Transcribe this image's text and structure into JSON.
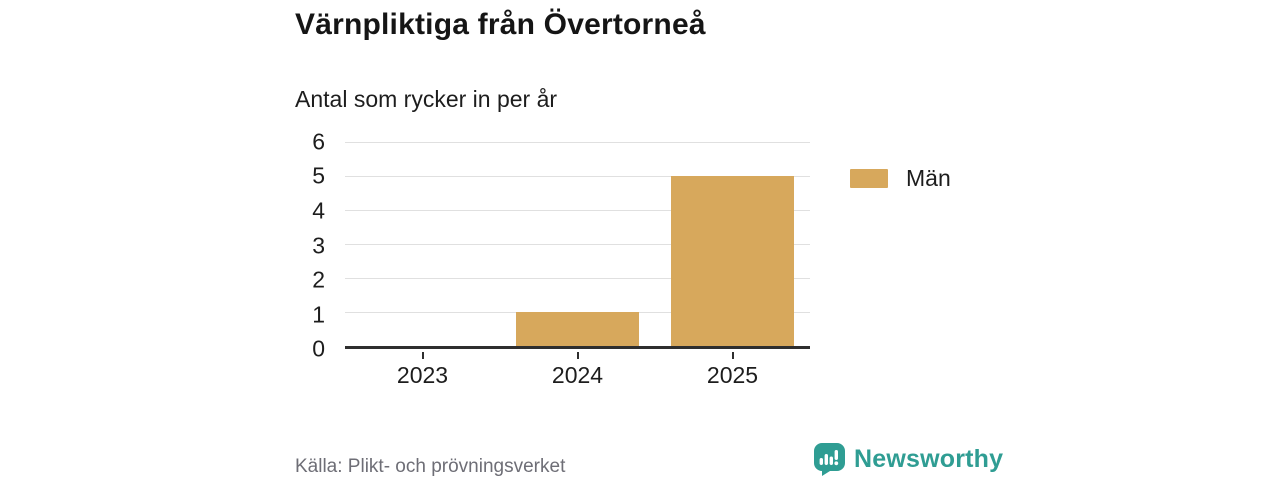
{
  "header": {
    "title": "Värnpliktiga från Övertorneå",
    "subtitle": "Antal som rycker in per år"
  },
  "chart_data": {
    "type": "bar",
    "title": "Värnpliktiga från Övertorneå",
    "subtitle": "Antal som rycker in per år",
    "categories": [
      "2023",
      "2024",
      "2025"
    ],
    "series": [
      {
        "name": "Män",
        "values": [
          0,
          1,
          5
        ],
        "color": "#d7a85c"
      }
    ],
    "xlabel": "",
    "ylabel": "",
    "ylim": [
      0,
      6
    ],
    "yticks": [
      0,
      1,
      2,
      3,
      4,
      5,
      6
    ],
    "grid": true,
    "legend_position": "right"
  },
  "legend": {
    "items": [
      {
        "label": "Män",
        "color": "#d7a85c"
      }
    ]
  },
  "footer": {
    "source": "Källa: Plikt- och prövningsverket",
    "brand": "Newsworthy"
  },
  "icons": {
    "brand_logo": "newsworthy-speech-bubble-bar-chart-icon"
  },
  "colors": {
    "bar": "#d7a85c",
    "brand_teal": "#2f9d93",
    "gridline": "#e0e0e0",
    "axis": "#2e2e2e",
    "text_dark": "#151515",
    "source_gray": "#6e6e76"
  }
}
